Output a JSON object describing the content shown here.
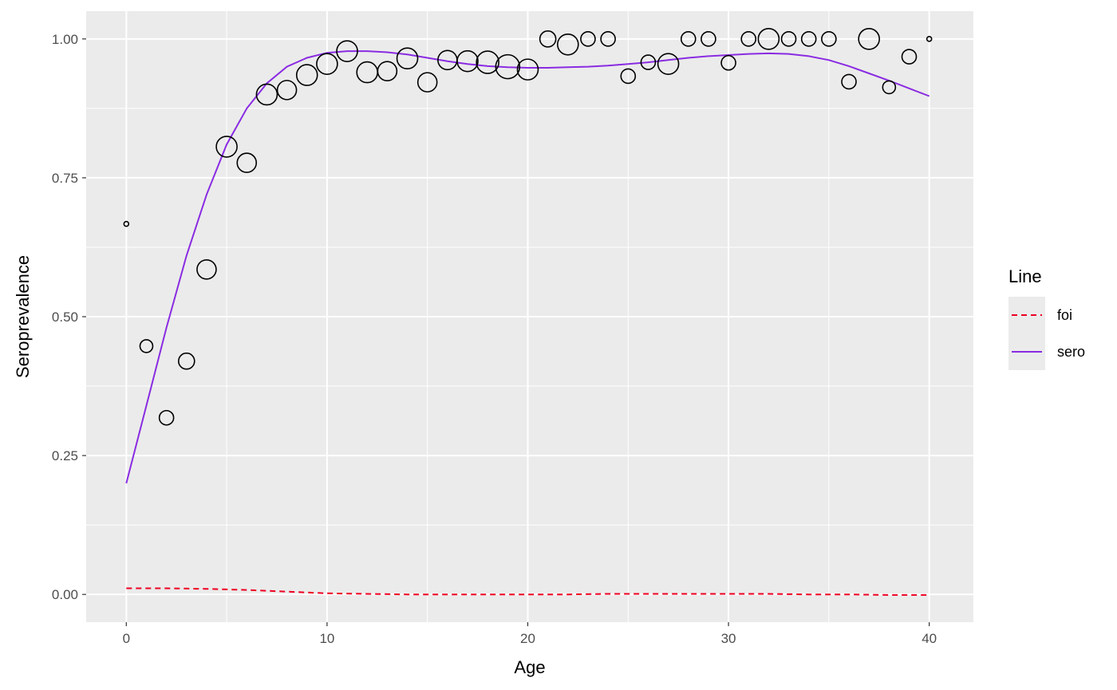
{
  "chart_data": {
    "type": "scatter",
    "xlabel": "Age",
    "ylabel": "Seroprevalence",
    "xlim": [
      -2,
      42.2
    ],
    "ylim": [
      -0.05,
      1.05
    ],
    "x_ticks": [
      0,
      10,
      20,
      30,
      40
    ],
    "x_tick_labels": [
      "0",
      "10",
      "20",
      "30",
      "40"
    ],
    "y_ticks": [
      0,
      0.25,
      0.5,
      0.75,
      1.0
    ],
    "y_tick_labels": [
      "0.00",
      "0.25",
      "0.50",
      "0.75",
      "1.00"
    ],
    "grid": true,
    "panel_background": "#ebebeb",
    "grid_color": "#ffffff",
    "legend": {
      "title": "Line",
      "placement": "right",
      "entries": [
        {
          "label": "foi",
          "color": "#ee0022",
          "style": "dashed"
        },
        {
          "label": "sero",
          "color": "#8a2be2",
          "style": "solid"
        }
      ]
    },
    "points": {
      "x": [
        0,
        1,
        2,
        3,
        4,
        5,
        6,
        7,
        8,
        9,
        10,
        11,
        12,
        13,
        14,
        15,
        16,
        17,
        18,
        19,
        20,
        21,
        22,
        23,
        24,
        25,
        26,
        27,
        28,
        29,
        30,
        31,
        32,
        33,
        34,
        35,
        36,
        37,
        38,
        39,
        40
      ],
      "y": [
        0.667,
        0.447,
        0.318,
        0.42,
        0.585,
        0.806,
        0.777,
        0.9,
        0.908,
        0.935,
        0.955,
        0.978,
        0.94,
        0.942,
        0.965,
        0.922,
        0.962,
        0.96,
        0.958,
        0.95,
        0.945,
        1.0,
        0.99,
        1.0,
        1.0,
        0.933,
        0.958,
        0.955,
        1.0,
        1.0,
        0.957,
        1.0,
        1.0,
        1.0,
        1.0,
        1.0,
        0.923,
        1.0,
        0.913,
        0.968,
        1.0
      ],
      "size": [
        3,
        8,
        9,
        10,
        12,
        13,
        12,
        13,
        12,
        13,
        13,
        13,
        13,
        12,
        13,
        12,
        12,
        13,
        14,
        15,
        13,
        10,
        13,
        9,
        9,
        9,
        9,
        13,
        9,
        9,
        9,
        9,
        13,
        9,
        9,
        9,
        9,
        13,
        8,
        9,
        3
      ],
      "stroke": "#000000"
    },
    "series": [
      {
        "name": "sero",
        "color": "#8a2be2",
        "style": "solid",
        "x": [
          0,
          1,
          2,
          3,
          4,
          5,
          6,
          7,
          8,
          9,
          10,
          11,
          12,
          13,
          14,
          15,
          16,
          17,
          18,
          19,
          20,
          21,
          22,
          23,
          24,
          25,
          26,
          27,
          28,
          29,
          30,
          31,
          32,
          33,
          34,
          35,
          36,
          37,
          38,
          39,
          40
        ],
        "y": [
          0.2,
          0.34,
          0.48,
          0.61,
          0.72,
          0.81,
          0.875,
          0.92,
          0.95,
          0.966,
          0.975,
          0.978,
          0.978,
          0.976,
          0.972,
          0.966,
          0.96,
          0.955,
          0.951,
          0.949,
          0.948,
          0.948,
          0.949,
          0.95,
          0.952,
          0.955,
          0.958,
          0.962,
          0.966,
          0.969,
          0.971,
          0.973,
          0.974,
          0.973,
          0.969,
          0.962,
          0.951,
          0.938,
          0.925,
          0.911,
          0.897
        ]
      },
      {
        "name": "foi",
        "color": "#ee0022",
        "style": "dashed",
        "x": [
          0,
          2,
          4,
          6,
          8,
          10,
          12,
          14,
          16,
          18,
          20,
          22,
          24,
          26,
          28,
          30,
          32,
          34,
          36,
          38,
          40
        ],
        "y": [
          0.011,
          0.011,
          0.01,
          0.008,
          0.005,
          0.002,
          0.001,
          0.0,
          0.0,
          0.0,
          0.0,
          0.0,
          0.001,
          0.001,
          0.001,
          0.001,
          0.001,
          0.0,
          0.0,
          -0.001,
          -0.001
        ]
      }
    ]
  }
}
